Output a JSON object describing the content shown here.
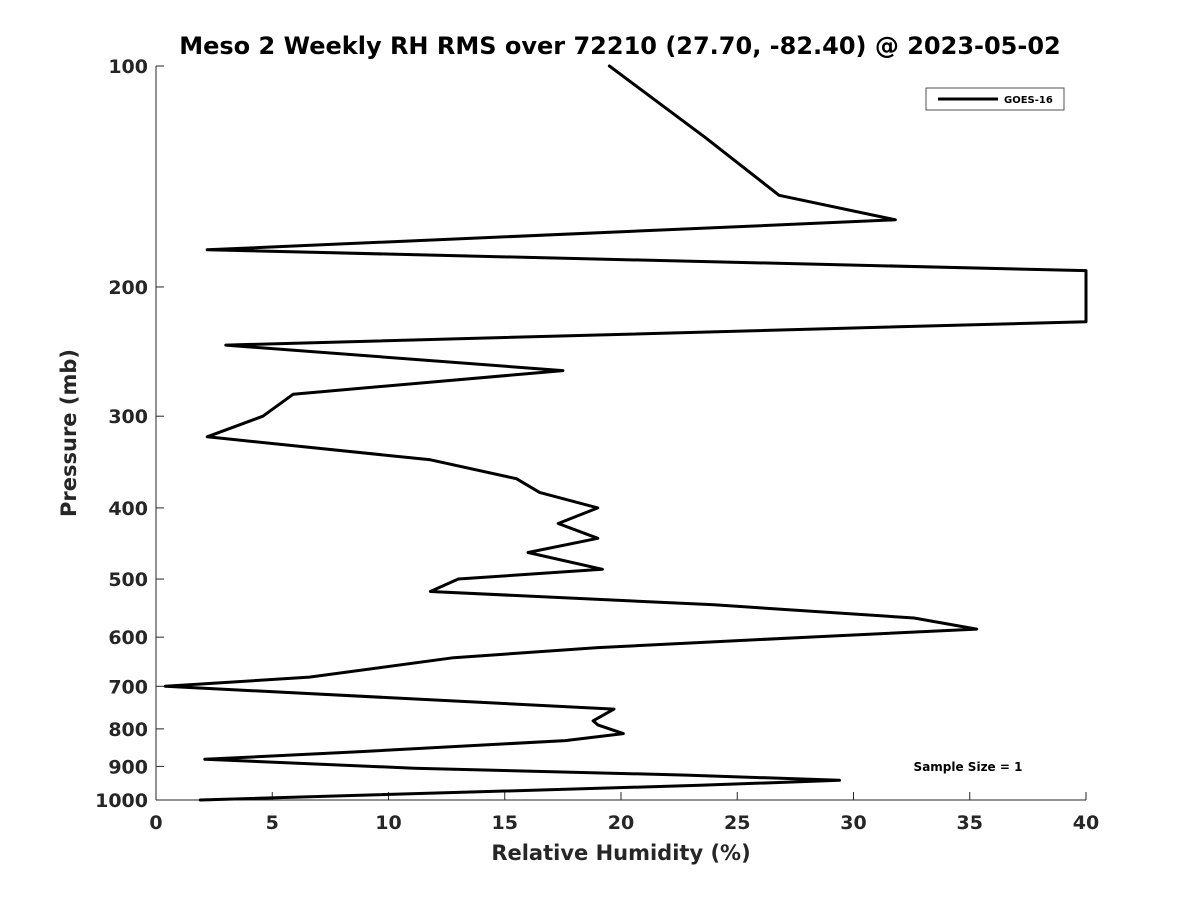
{
  "chart_data": {
    "type": "line",
    "title": "Meso 2 Weekly RH RMS over 72210 (27.70, -82.40) @ 2023-05-02",
    "xlabel": "Relative Humidity (%)",
    "ylabel": "Pressure (mb)",
    "xlim": [
      0,
      40
    ],
    "ylim": [
      100,
      1000
    ],
    "yscale": "log",
    "y_reversed": true,
    "grid": false,
    "xticks": [
      0,
      5,
      10,
      15,
      20,
      25,
      30,
      35,
      40
    ],
    "yticks": [
      100,
      200,
      300,
      400,
      500,
      600,
      700,
      800,
      900,
      1000
    ],
    "legend_position": "top-right",
    "annotation": "Sample Size = 1",
    "series": [
      {
        "name": "GOES-16",
        "color": "#000000",
        "x": [
          19.5,
          23.6,
          26.8,
          31.8,
          2.2,
          40.0,
          40.0,
          3.0,
          17.5,
          5.9,
          4.6,
          2.2,
          11.8,
          15.5,
          16.5,
          19.0,
          17.3,
          19.0,
          16.0,
          19.2,
          13.0,
          11.8,
          24.0,
          32.6,
          35.3,
          28.0,
          19.0,
          12.8,
          6.6,
          0.4,
          19.7,
          18.8,
          19.0,
          20.1,
          17.6,
          8.6,
          2.1,
          11.1,
          22.8,
          29.4,
          23.4,
          1.9
        ],
        "y": [
          100,
          125,
          150,
          162,
          178,
          190,
          223,
          240,
          260,
          280,
          300,
          320,
          344,
          365,
          381,
          400,
          420,
          440,
          460,
          485,
          500,
          520,
          542,
          565,
          585,
          600,
          620,
          640,
          680,
          700,
          752,
          780,
          790,
          812,
          830,
          860,
          880,
          905,
          925,
          940,
          955,
          1000
        ]
      }
    ]
  }
}
